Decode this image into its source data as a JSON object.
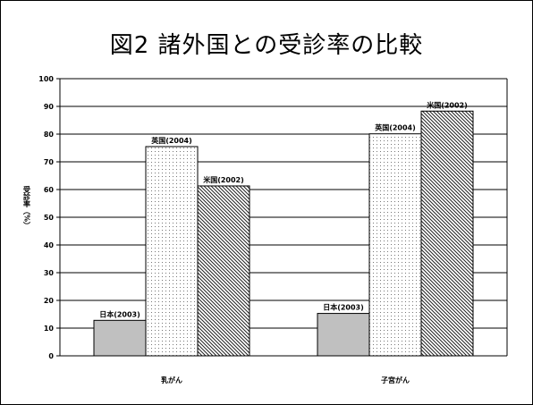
{
  "chart_data": {
    "type": "bar",
    "title": "図2 諸外国との受診率の比較",
    "ylabel": "受診率（%）",
    "xlabel": "",
    "ylim": [
      0,
      100
    ],
    "yticks": [
      0,
      10,
      20,
      30,
      40,
      50,
      60,
      70,
      80,
      90,
      100
    ],
    "grid": true,
    "categories": [
      "乳がん",
      "子宮がん"
    ],
    "groups": [
      {
        "category": "乳がん",
        "bars": [
          {
            "label": "日本(2003)",
            "value": 12.8,
            "color": "#c0c0c0",
            "pattern": "solid"
          },
          {
            "label": "英国(2004)",
            "value": 75.5,
            "color": "#ffffff",
            "pattern": "dots"
          },
          {
            "label": "米国(2002)",
            "value": 61.3,
            "color": "#ffffff",
            "pattern": "diagonal"
          }
        ]
      },
      {
        "category": "子宮がん",
        "bars": [
          {
            "label": "日本(2003)",
            "value": 15.3,
            "color": "#c0c0c0",
            "pattern": "solid"
          },
          {
            "label": "英国(2004)",
            "value": 80.1,
            "color": "#ffffff",
            "pattern": "dots"
          },
          {
            "label": "米国(2002)",
            "value": 88.3,
            "color": "#ffffff",
            "pattern": "diagonal"
          }
        ]
      }
    ]
  }
}
